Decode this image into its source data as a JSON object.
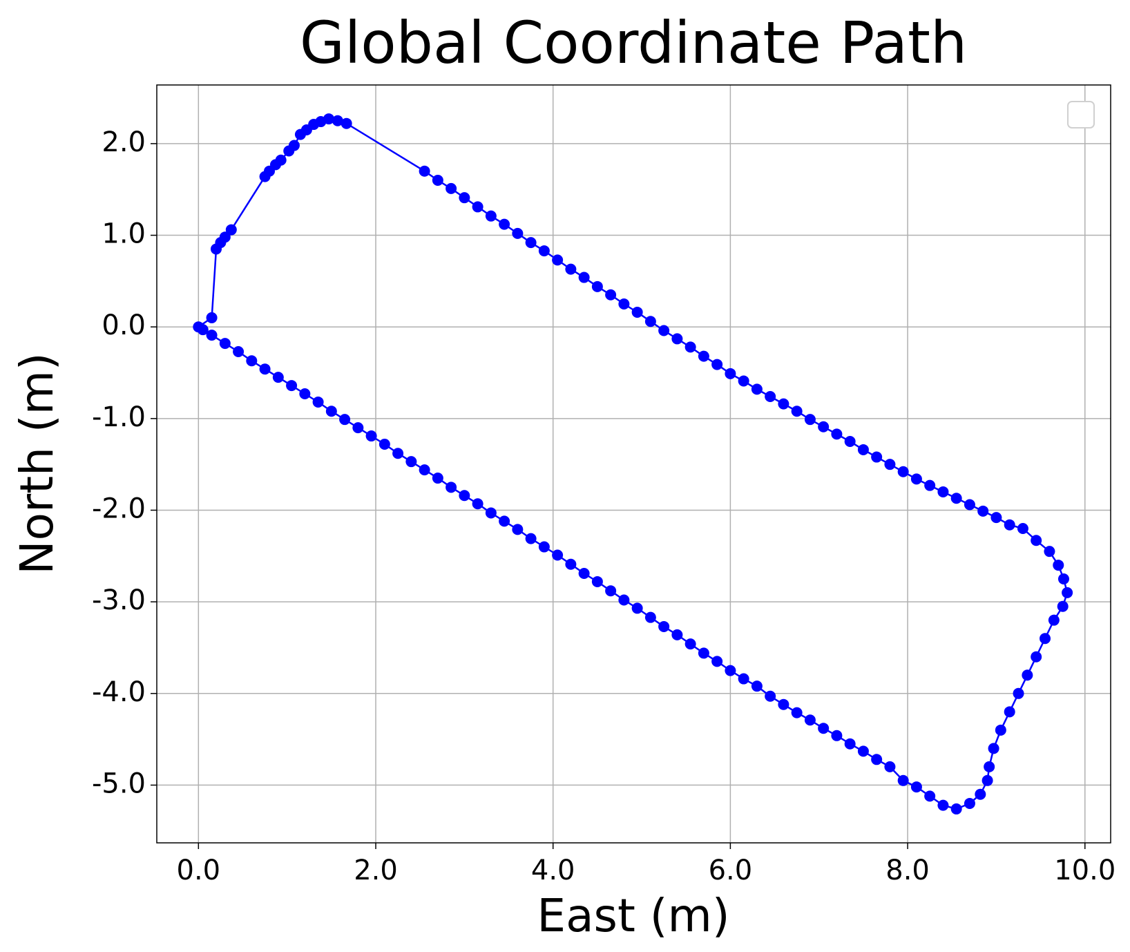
{
  "chart_data": {
    "type": "line",
    "title": "Global Coordinate Path",
    "x_label": "East (m)",
    "y_label": "North (m)",
    "color": "#0000ff",
    "grid": true,
    "legend": "upper right",
    "xlim": [
      -0.47,
      10.29
    ],
    "ylim": [
      -5.63,
      2.64
    ],
    "xticks": [
      {
        "value": 0,
        "label": "0.0"
      },
      {
        "value": 2,
        "label": "2.0"
      },
      {
        "value": 4,
        "label": "4.0"
      },
      {
        "value": 6,
        "label": "6.0"
      },
      {
        "value": 8,
        "label": "8.0"
      },
      {
        "value": 10,
        "label": "10.0"
      }
    ],
    "yticks": [
      {
        "value": -5,
        "label": "-5.0"
      },
      {
        "value": -4,
        "label": "-4.0"
      },
      {
        "value": -3,
        "label": "-3.0"
      },
      {
        "value": -2,
        "label": "-2.0"
      },
      {
        "value": -1,
        "label": "-1.0"
      },
      {
        "value": 0,
        "label": "0.0"
      },
      {
        "value": 1,
        "label": "1.0"
      },
      {
        "value": 2,
        "label": "2.0"
      }
    ],
    "x": [
      0,
      0.15,
      0.2,
      0.25,
      0.3,
      0.37,
      0.75,
      0.8,
      0.87,
      0.93,
      1.02,
      1.08,
      1.15,
      1.22,
      1.3,
      1.38,
      1.47,
      1.57,
      1.67,
      2.55,
      2.7,
      2.85,
      3.0,
      3.15,
      3.3,
      3.45,
      3.6,
      3.75,
      3.9,
      4.05,
      4.2,
      4.35,
      4.5,
      4.65,
      4.8,
      4.95,
      5.1,
      5.25,
      5.4,
      5.55,
      5.7,
      5.85,
      6.0,
      6.15,
      6.3,
      6.45,
      6.6,
      6.75,
      6.9,
      7.05,
      7.2,
      7.35,
      7.5,
      7.65,
      7.8,
      7.95,
      8.1,
      8.25,
      8.4,
      8.55,
      8.7,
      8.85,
      9.0,
      9.15,
      9.3,
      9.45,
      9.6,
      9.7,
      9.76,
      9.8,
      9.75,
      9.65,
      9.55,
      9.45,
      9.35,
      9.25,
      9.15,
      9.05,
      8.97,
      8.92,
      8.9,
      8.82,
      8.7,
      8.55,
      8.4,
      8.25,
      8.1,
      7.95,
      7.8,
      7.65,
      7.5,
      7.35,
      7.2,
      7.05,
      6.9,
      6.75,
      6.6,
      6.45,
      6.3,
      6.15,
      6.0,
      5.85,
      5.7,
      5.55,
      5.4,
      5.25,
      5.1,
      4.95,
      4.8,
      4.65,
      4.5,
      4.35,
      4.2,
      4.05,
      3.9,
      3.75,
      3.6,
      3.45,
      3.3,
      3.15,
      3.0,
      2.85,
      2.7,
      2.55,
      2.4,
      2.25,
      2.1,
      1.95,
      1.8,
      1.65,
      1.5,
      1.35,
      1.2,
      1.05,
      0.9,
      0.75,
      0.6,
      0.45,
      0.3,
      0.15,
      0.05
    ],
    "values": [
      0,
      0.1,
      0.85,
      0.92,
      0.98,
      1.06,
      1.64,
      1.7,
      1.77,
      1.82,
      1.92,
      1.98,
      2.1,
      2.15,
      2.21,
      2.24,
      2.27,
      2.25,
      2.22,
      1.7,
      1.6,
      1.51,
      1.41,
      1.31,
      1.21,
      1.12,
      1.02,
      0.92,
      0.83,
      0.73,
      0.63,
      0.54,
      0.44,
      0.35,
      0.25,
      0.16,
      0.06,
      -0.04,
      -0.13,
      -0.22,
      -0.32,
      -0.41,
      -0.51,
      -0.59,
      -0.68,
      -0.76,
      -0.84,
      -0.92,
      -1.01,
      -1.09,
      -1.17,
      -1.25,
      -1.34,
      -1.42,
      -1.5,
      -1.58,
      -1.66,
      -1.73,
      -1.8,
      -1.87,
      -1.94,
      -2.01,
      -2.08,
      -2.16,
      -2.2,
      -2.33,
      -2.45,
      -2.6,
      -2.75,
      -2.9,
      -3.05,
      -3.2,
      -3.4,
      -3.6,
      -3.8,
      -4.0,
      -4.2,
      -4.4,
      -4.6,
      -4.8,
      -4.95,
      -5.1,
      -5.2,
      -5.26,
      -5.22,
      -5.12,
      -5.02,
      -4.95,
      -4.8,
      -4.72,
      -4.63,
      -4.55,
      -4.46,
      -4.38,
      -4.29,
      -4.21,
      -4.12,
      -4.03,
      -3.92,
      -3.84,
      -3.75,
      -3.65,
      -3.56,
      -3.46,
      -3.36,
      -3.27,
      -3.17,
      -3.07,
      -2.98,
      -2.88,
      -2.78,
      -2.69,
      -2.59,
      -2.49,
      -2.4,
      -2.31,
      -2.21,
      -2.12,
      -2.03,
      -1.93,
      -1.84,
      -1.75,
      -1.65,
      -1.56,
      -1.47,
      -1.38,
      -1.28,
      -1.19,
      -1.1,
      -1.01,
      -0.92,
      -0.82,
      -0.73,
      -0.64,
      -0.55,
      -0.46,
      -0.37,
      -0.27,
      -0.18,
      -0.09,
      -0.03
    ]
  }
}
